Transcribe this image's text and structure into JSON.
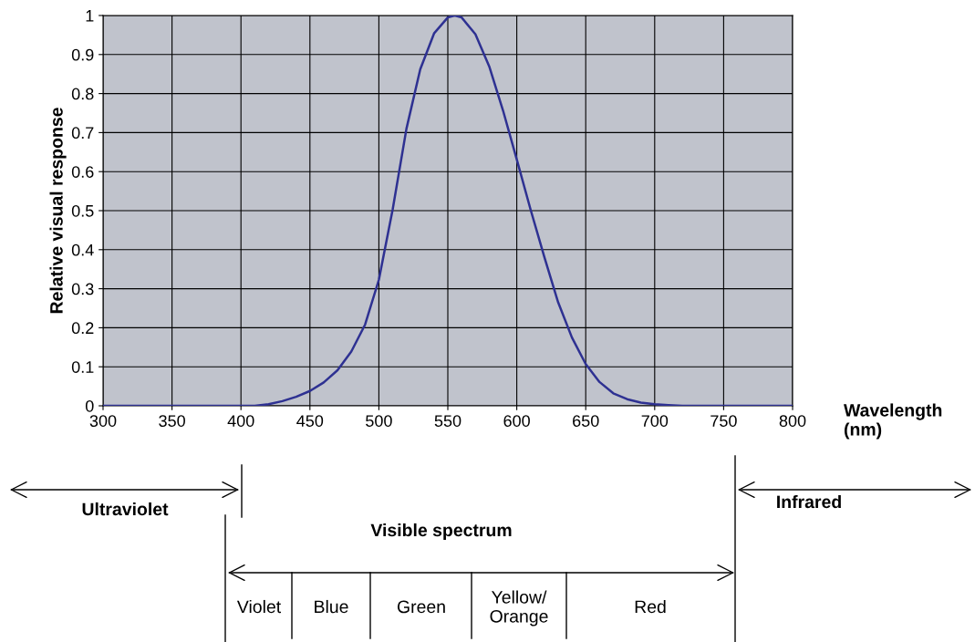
{
  "chart_data": {
    "type": "line",
    "xlabel": "Wavelength\n(nm)",
    "ylabel": "Relative visual response",
    "x": [
      300,
      350,
      400,
      410,
      420,
      430,
      440,
      450,
      460,
      470,
      480,
      490,
      500,
      510,
      520,
      530,
      540,
      550,
      555,
      560,
      570,
      580,
      590,
      600,
      610,
      620,
      630,
      640,
      650,
      660,
      670,
      680,
      690,
      700,
      710,
      720,
      750,
      800
    ],
    "series": [
      {
        "color": "#2e3192",
        "values": [
          0,
          0,
          0,
          0.0,
          0.004,
          0.012,
          0.023,
          0.038,
          0.06,
          0.091,
          0.139,
          0.208,
          0.323,
          0.503,
          0.71,
          0.862,
          0.954,
          0.995,
          1.0,
          0.995,
          0.952,
          0.87,
          0.757,
          0.631,
          0.503,
          0.381,
          0.265,
          0.175,
          0.107,
          0.061,
          0.032,
          0.017,
          0.008,
          0.004,
          0.002,
          0.0,
          0,
          0
        ]
      }
    ],
    "xlim": [
      300,
      800
    ],
    "xticks": [
      300,
      350,
      400,
      450,
      500,
      550,
      600,
      650,
      700,
      750,
      800
    ],
    "ylim": [
      0,
      1
    ],
    "yticks": [
      0,
      0.1,
      0.2,
      0.3,
      0.4,
      0.5,
      0.6,
      0.7,
      0.8,
      0.9,
      1
    ],
    "grid": true,
    "marker": "none",
    "line_style": "solid",
    "annotations": [
      "Ultraviolet",
      "Infrared",
      "Visible spectrum",
      "Violet",
      "Blue",
      "Green",
      "Yellow/\nOrange",
      "Red"
    ]
  }
}
